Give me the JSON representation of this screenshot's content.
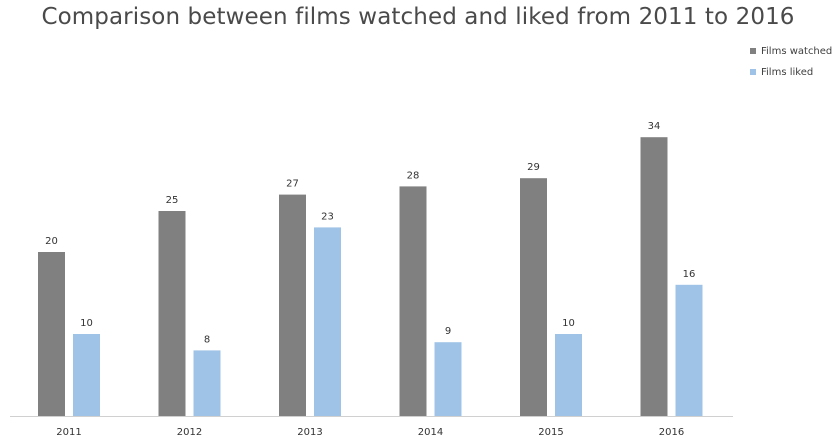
{
  "chart_data": {
    "type": "bar",
    "title": "Comparison between films watched and liked from 2011 to 2016",
    "categories": [
      "2011",
      "2012",
      "2013",
      "2014",
      "2015",
      "2016"
    ],
    "series": [
      {
        "name": "Films watched",
        "values": [
          20,
          25,
          27,
          28,
          29,
          34
        ],
        "color": "#808080"
      },
      {
        "name": "Films liked",
        "values": [
          10,
          8,
          23,
          9,
          10,
          16
        ],
        "color": "#9fc3e7"
      }
    ],
    "xlabel": "",
    "ylabel": "",
    "ylim": [
      0,
      34
    ],
    "grid": false,
    "legend_position": "top-right",
    "data_labels": true
  }
}
